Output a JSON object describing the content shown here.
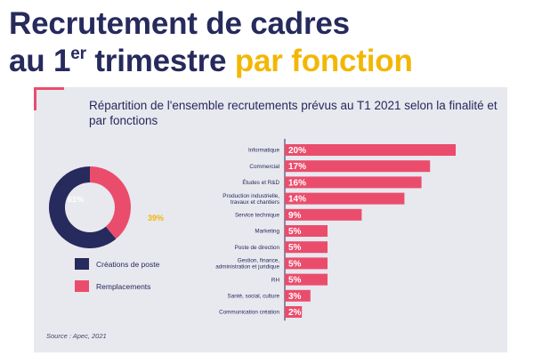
{
  "headline": {
    "line1": "Recrutement de cadres",
    "line2_prefix": "au 1",
    "line2_sup": "er",
    "line2_mid": " trimestre ",
    "line2_accent": "par fonction"
  },
  "chart_data": [
    {
      "type": "pie",
      "title": "Répartition de l'ensemble recrutements prévus au T1 2021 selon la finalité et par fonctions",
      "categories": [
        "Créations de poste",
        "Remplacements"
      ],
      "values": [
        61,
        39
      ],
      "value_labels": [
        "61%",
        "39%"
      ],
      "colors": [
        "#262a5c",
        "#ea4d6c"
      ],
      "legend": "below"
    },
    {
      "type": "bar",
      "orientation": "horizontal",
      "categories": [
        "Informatique",
        "Commercial",
        "Études et R&D",
        "Production industrielle, travaux et chantiers",
        "Service technique",
        "Marketing",
        "Poste de direction",
        "Gestion, finance, administration et juridique",
        "RH",
        "Santé, social, culture",
        "Communication création"
      ],
      "values": [
        20,
        17,
        16,
        14,
        9,
        5,
        5,
        5,
        5,
        3,
        2
      ],
      "value_labels": [
        "20%",
        "17%",
        "16%",
        "14%",
        "9%",
        "5%",
        "5%",
        "5%",
        "5%",
        "3%",
        "2%"
      ],
      "color": "#ea4d6c"
    }
  ],
  "source": "Source : Apec, 2021"
}
